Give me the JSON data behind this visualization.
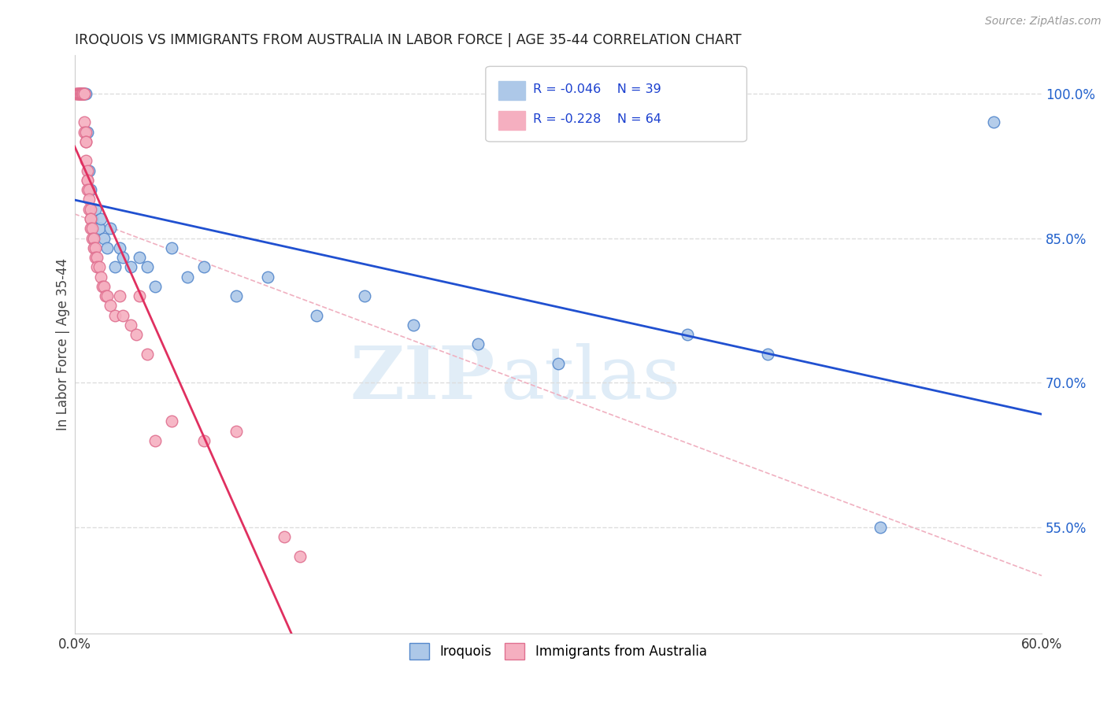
{
  "title": "IROQUOIS VS IMMIGRANTS FROM AUSTRALIA IN LABOR FORCE | AGE 35-44 CORRELATION CHART",
  "source": "Source: ZipAtlas.com",
  "ylabel": "In Labor Force | Age 35-44",
  "xlim": [
    0.0,
    0.6
  ],
  "ylim": [
    0.44,
    1.04
  ],
  "yticks_right": [
    1.0,
    0.85,
    0.7,
    0.55
  ],
  "ytick_right_labels": [
    "100.0%",
    "85.0%",
    "70.0%",
    "55.0%"
  ],
  "legend_R1": "R = -0.046",
  "legend_N1": "N = 39",
  "legend_R2": "R = -0.228",
  "legend_N2": "N = 64",
  "watermark_zip": "ZIP",
  "watermark_atlas": "atlas",
  "iroquois_color": "#adc8e8",
  "immigrants_color": "#f5afc0",
  "iroquois_edge": "#5588cc",
  "immigrants_edge": "#e07090",
  "regression_blue": "#2050d0",
  "regression_pink": "#e03060",
  "ref_line_color": "#f0b0c0",
  "grid_color": "#dddddd",
  "iroquois_x": [
    0.003,
    0.004,
    0.004,
    0.005,
    0.005,
    0.006,
    0.007,
    0.008,
    0.009,
    0.01,
    0.011,
    0.012,
    0.013,
    0.015,
    0.016,
    0.018,
    0.02,
    0.022,
    0.025,
    0.028,
    0.03,
    0.035,
    0.04,
    0.045,
    0.05,
    0.06,
    0.07,
    0.08,
    0.1,
    0.12,
    0.15,
    0.18,
    0.21,
    0.25,
    0.3,
    0.38,
    0.43,
    0.5,
    0.57
  ],
  "iroquois_y": [
    1.0,
    1.0,
    1.0,
    1.0,
    1.0,
    1.0,
    1.0,
    0.96,
    0.92,
    0.9,
    0.87,
    0.85,
    0.88,
    0.86,
    0.87,
    0.85,
    0.84,
    0.86,
    0.82,
    0.84,
    0.83,
    0.82,
    0.83,
    0.82,
    0.8,
    0.84,
    0.81,
    0.82,
    0.79,
    0.81,
    0.77,
    0.79,
    0.76,
    0.74,
    0.72,
    0.75,
    0.73,
    0.55,
    0.97
  ],
  "immigrants_x": [
    0.001,
    0.001,
    0.002,
    0.002,
    0.003,
    0.003,
    0.003,
    0.003,
    0.004,
    0.004,
    0.004,
    0.004,
    0.005,
    0.005,
    0.005,
    0.005,
    0.005,
    0.006,
    0.006,
    0.006,
    0.006,
    0.007,
    0.007,
    0.007,
    0.007,
    0.008,
    0.008,
    0.008,
    0.008,
    0.009,
    0.009,
    0.009,
    0.01,
    0.01,
    0.01,
    0.01,
    0.011,
    0.011,
    0.012,
    0.012,
    0.013,
    0.013,
    0.014,
    0.014,
    0.015,
    0.016,
    0.017,
    0.018,
    0.019,
    0.02,
    0.022,
    0.025,
    0.028,
    0.03,
    0.035,
    0.038,
    0.04,
    0.045,
    0.05,
    0.06,
    0.08,
    0.1,
    0.13,
    0.14
  ],
  "immigrants_y": [
    1.0,
    1.0,
    1.0,
    1.0,
    1.0,
    1.0,
    1.0,
    1.0,
    1.0,
    1.0,
    1.0,
    1.0,
    1.0,
    1.0,
    1.0,
    1.0,
    1.0,
    1.0,
    1.0,
    0.97,
    0.96,
    0.96,
    0.95,
    0.95,
    0.93,
    0.92,
    0.91,
    0.91,
    0.9,
    0.9,
    0.89,
    0.88,
    0.88,
    0.87,
    0.87,
    0.86,
    0.86,
    0.85,
    0.85,
    0.84,
    0.84,
    0.83,
    0.83,
    0.82,
    0.82,
    0.81,
    0.8,
    0.8,
    0.79,
    0.79,
    0.78,
    0.77,
    0.79,
    0.77,
    0.76,
    0.75,
    0.79,
    0.73,
    0.64,
    0.66,
    0.64,
    0.65,
    0.54,
    0.52
  ]
}
